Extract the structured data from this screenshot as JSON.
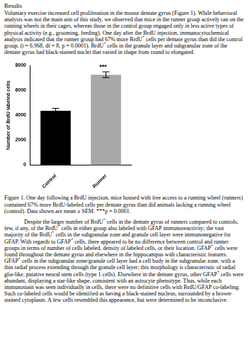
{
  "header": {
    "title": "Results"
  },
  "paragraphs_before": [
    [
      "Voluntary exercise increased cell proliferation in the mouse dentate gyrus (Figure 1).  While behavioral analysis was not the main aim of this study, we observed that mice in the runner group actively ran on the running wheels in their cages, whereas those in the control group engaged only in less active types of physical activity (e.g., grooming, feeding).  One day after the BrdU injection, immunocytochemical analysis indicated that the runner group had 67% more BrdU",
      {
        "sup": "+"
      },
      " cells per dentate gyrus than did the control group. (t = 6.968, df = 8, p = 0.0001).  BrdU",
      {
        "sup": "+"
      },
      " cells in the granule layer and subgranular zone of the dentate gyrus had black-stained nuclei that varied in shape from round to elongated."
    ]
  ],
  "chart_data": {
    "type": "bar",
    "categories": [
      "Control",
      "Runner"
    ],
    "values": [
      4350,
      7250
    ],
    "errors": [
      200,
      230
    ],
    "colors": [
      "#000000",
      "#a8a8a8"
    ],
    "ylabel": "Number of BrdU labeled cells",
    "ylim": [
      0,
      8000
    ],
    "yticks": [
      0,
      2000,
      4000,
      6000,
      8000
    ],
    "annotation": "***",
    "grid": false
  },
  "caption": [
    "Figure 1.  One day following a BrdU injection, mice housed with free access to a running wheel (runners) contained 67% more BrdU-labeled cells per dentate gyrus than did animals lacking a running wheel (control).  Data shown are mean ± SEM.  ***p = 0.0001."
  ],
  "paragraphs_after": [
    [
      "Despite the larger number of BrdU",
      {
        "sup": "+"
      },
      " cells in the dentate gyrus of runners compared to controls, few, if any, of the BrdU",
      {
        "sup": "+"
      },
      " cells in either group also labeled with GFAP immunoreactivity; the vast majority of the BrdU",
      {
        "sup": "+"
      },
      " cells in the subgranular zone and granule cell layer were immunonegative for GFAP.  With regards to GFAP",
      {
        "sup": "+"
      },
      " cells, there appeared to be no difference between control and runner groups in terms of number of cells labeled, density of labeled cells, or their location.  GFAP",
      {
        "sup": "+"
      },
      " cells were found throughout the dentate gyrus and elsewhere in the hippocampus with characteristic features.  GFAP",
      {
        "sup": "+"
      },
      " cells in the subgranular zone/granule cell layer had a cell body in the subgranular zone, with a thin radial process extending through the granule cell layer; this morphology is characteristic of radial glia-like, putative neural stem cells (type 1 cells).  Elsewhere in the dentate gyrus, other GFAP",
      {
        "sup": "+"
      },
      " cells were abundant, displaying a star-like shape, consistent with an astrocyte phenotype.  Thus, while each immunostain was seen individually in cells, there were no definitive cells with BrdU/GFAP co-labeling.  Such co-labeled cells would be identified as having a black-stained nucleus, surrounded by a brown-stained cytoplasm.  A few cells resembled this appearance, but were determined to be inconclusive."
    ]
  ]
}
